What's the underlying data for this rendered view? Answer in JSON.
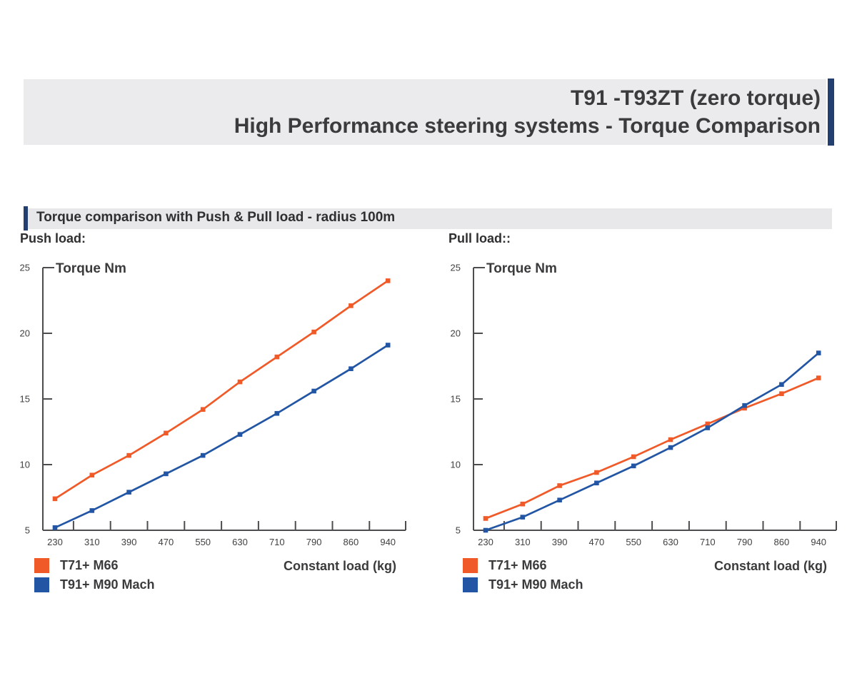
{
  "header": {
    "title_line1": "T91 -T93ZT (zero torque)",
    "title_line2": "High Performance steering systems - Torque Comparison"
  },
  "subtitle": "Torque comparison with Push & Pull load - radius 100m",
  "sections": {
    "push_label": "Push load:",
    "pull_label": "Pull load::"
  },
  "colors": {
    "orange": "#F05A28",
    "blue": "#2256A4",
    "navy": "#223F70",
    "band_gray": "#EBEBED",
    "axis": "#4D4D4F",
    "text": "#3B3B3D"
  },
  "chart_data": [
    {
      "id": "push",
      "type": "line",
      "title": "Torque Nm",
      "xlabel": "Constant load (kg)",
      "ylabel": "Torque Nm",
      "categories": [
        "230",
        "310",
        "390",
        "470",
        "550",
        "630",
        "710",
        "790",
        "860",
        "940"
      ],
      "y_ticks": [
        5,
        10,
        15,
        20,
        25
      ],
      "ylim": [
        5,
        25
      ],
      "grid": false,
      "legend_position": "bottom-left",
      "series": [
        {
          "name": "T71+ M66",
          "color": "#F05A28",
          "values": [
            7.4,
            9.2,
            10.7,
            12.4,
            14.2,
            16.3,
            18.2,
            20.1,
            22.1,
            24.0
          ]
        },
        {
          "name": "T91+ M90 Mach",
          "color": "#2256A4",
          "values": [
            5.2,
            6.5,
            7.9,
            9.3,
            10.7,
            12.3,
            13.9,
            15.6,
            17.3,
            19.1
          ]
        }
      ]
    },
    {
      "id": "pull",
      "type": "line",
      "title": "Torque Nm",
      "xlabel": "Constant load (kg)",
      "ylabel": "Torque Nm",
      "categories": [
        "230",
        "310",
        "390",
        "470",
        "550",
        "630",
        "710",
        "790",
        "860",
        "940"
      ],
      "y_ticks": [
        5,
        10,
        15,
        20,
        25
      ],
      "ylim": [
        5,
        25
      ],
      "grid": false,
      "legend_position": "bottom-left",
      "series": [
        {
          "name": "T71+ M66",
          "color": "#F05A28",
          "values": [
            5.9,
            7.0,
            8.4,
            9.4,
            10.6,
            11.9,
            13.1,
            14.3,
            15.4,
            16.6
          ]
        },
        {
          "name": "T91+ M90 Mach",
          "color": "#2256A4",
          "values": [
            5.0,
            6.0,
            7.3,
            8.6,
            9.9,
            11.3,
            12.8,
            14.5,
            16.1,
            18.5
          ]
        }
      ]
    }
  ]
}
